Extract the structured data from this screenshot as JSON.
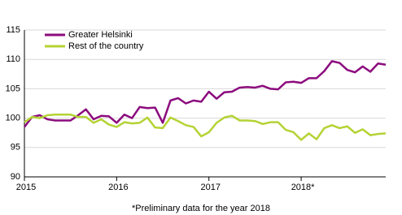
{
  "chart_data": {
    "type": "line",
    "categories": [
      "2015",
      null,
      null,
      null,
      null,
      null,
      null,
      null,
      null,
      null,
      null,
      null,
      "2016",
      null,
      null,
      null,
      null,
      null,
      null,
      null,
      null,
      null,
      null,
      null,
      "2017",
      null,
      null,
      null,
      null,
      null,
      null,
      null,
      null,
      null,
      null,
      null,
      "2018*",
      null,
      null,
      null,
      null,
      null,
      null,
      null,
      null,
      null,
      null,
      null
    ],
    "series": [
      {
        "name": "Greater Helsinki",
        "color": "#8c0b7e",
        "values": [
          98.5,
          100.2,
          100.5,
          99.8,
          99.6,
          99.6,
          99.6,
          100.5,
          101.5,
          99.8,
          100.4,
          100.3,
          99.2,
          100.6,
          100.0,
          101.9,
          101.7,
          101.8,
          99.2,
          103.0,
          103.4,
          102.5,
          103.0,
          102.8,
          104.5,
          103.3,
          104.4,
          104.5,
          105.2,
          105.3,
          105.2,
          105.5,
          105.0,
          104.9,
          106.1,
          106.2,
          106.0,
          106.8,
          106.8,
          108.0,
          109.7,
          109.4,
          108.2,
          107.8,
          108.8,
          107.9,
          109.3,
          109.1
        ]
      },
      {
        "name": "Rest of the country",
        "color": "#b4d334",
        "values": [
          99.3,
          100.2,
          100.0,
          100.5,
          100.6,
          100.6,
          100.6,
          100.2,
          100.2,
          99.2,
          99.8,
          98.9,
          98.5,
          99.3,
          99.1,
          99.2,
          100.1,
          98.4,
          98.3,
          100.1,
          99.5,
          98.8,
          98.5,
          96.9,
          97.6,
          99.2,
          100.1,
          100.4,
          99.6,
          99.6,
          99.5,
          99.0,
          99.3,
          99.3,
          98.0,
          97.6,
          96.3,
          97.4,
          96.4,
          98.3,
          98.8,
          98.3,
          98.6,
          97.5,
          98.1,
          97.1,
          97.3,
          97.4
        ]
      }
    ],
    "ylim": [
      90,
      115
    ],
    "yticks": [
      90,
      95,
      100,
      105,
      110,
      115
    ],
    "grid": true,
    "legend": "top-left",
    "annotation": "*Preliminary data for the year 2018"
  }
}
